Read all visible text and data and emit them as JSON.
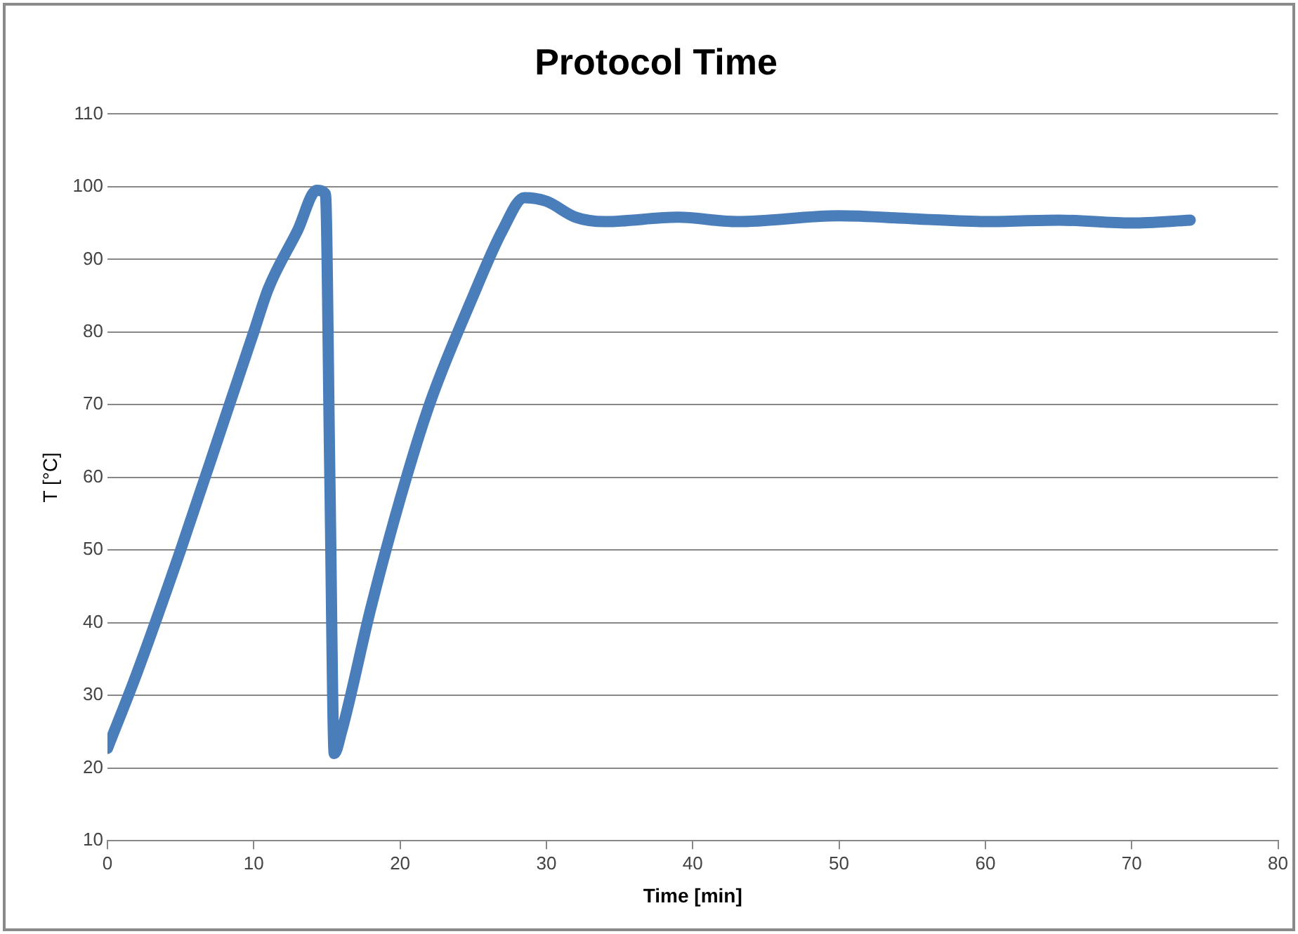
{
  "chart_data": {
    "type": "line",
    "title": "Protocol Time",
    "xlabel": "Time [min]",
    "ylabel": "T [°C]",
    "x": [
      0,
      2,
      5,
      8,
      10,
      11,
      13,
      14.3,
      14.9,
      15.2,
      15.5,
      16,
      18,
      20,
      22,
      25,
      27,
      28.5,
      30,
      32,
      34,
      39,
      43,
      50,
      55,
      60,
      65,
      70,
      74
    ],
    "series": [
      {
        "color": "#4a7ebb",
        "values": [
          22.7,
          33,
          50,
          68,
          80,
          86,
          94,
          99.5,
          99,
          60,
          22,
          25,
          42,
          57,
          70,
          85,
          94,
          98.5,
          98,
          95.8,
          95.2,
          95.8,
          95.2,
          96,
          95.6,
          95.2,
          95.4,
          95,
          95.4
        ]
      }
    ],
    "xlim": [
      0,
      80
    ],
    "xticks": [
      0,
      10,
      20,
      30,
      40,
      50,
      60,
      70,
      80
    ],
    "ylim": [
      10,
      110
    ],
    "yticks": [
      10,
      20,
      30,
      40,
      50,
      60,
      70,
      80,
      90,
      100,
      110
    ],
    "grid": "y",
    "legend": false,
    "marker": "none",
    "line_style": "solid"
  }
}
